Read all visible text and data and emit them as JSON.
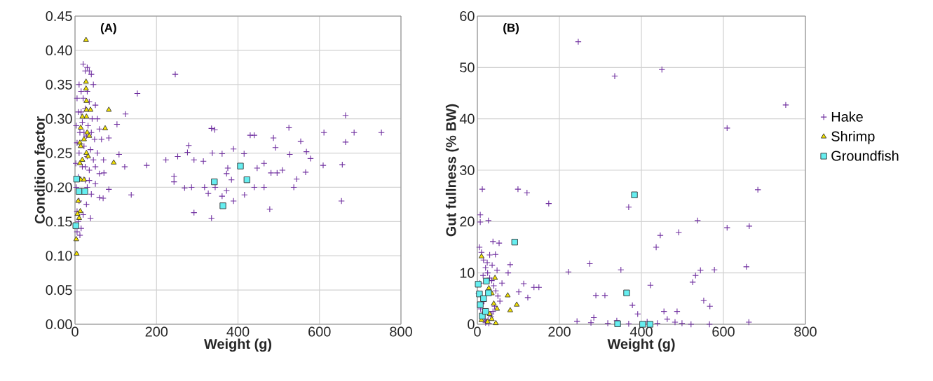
{
  "chart_data": [
    {
      "type": "scatter",
      "xlabel": "Weight (g)",
      "ylabel": "Condition factor",
      "annotations": [
        "(A)"
      ],
      "grid": true,
      "legend": false,
      "xlim": [
        0,
        800
      ],
      "xticks": [
        0,
        200,
        400,
        600,
        800
      ],
      "ylim": [
        0,
        0.45
      ],
      "yticks": [
        {
          "value": 0,
          "label": "0.00"
        },
        {
          "value": 0.05,
          "label": "0.05"
        },
        {
          "value": 0.1,
          "label": "0.10"
        },
        {
          "value": 0.15,
          "label": "0.15"
        },
        {
          "value": 0.2,
          "label": "0.20"
        },
        {
          "value": 0.25,
          "label": "0.25"
        },
        {
          "value": 0.3,
          "label": "0.30"
        },
        {
          "value": 0.35,
          "label": "0.35"
        },
        {
          "value": 0.4,
          "label": "0.40"
        },
        {
          "value": 0.45,
          "label": "0.45"
        }
      ],
      "series": [
        {
          "color": "#7030a0",
          "marker": "cross",
          "x": [
            246,
            153,
            124,
            103,
            83,
            108,
            122,
            176,
            71,
            83,
            138,
            69,
            335,
            343,
            279,
            276,
            223,
            252,
            292,
            315,
            337,
            361,
            389,
            415,
            430,
            440,
            487,
            492,
            243,
            243,
            269,
            286,
            318,
            327,
            344,
            361,
            372,
            384,
            389,
            292,
            335,
            416,
            440,
            464,
            478,
            447,
            464,
            481,
            496,
            375,
            372,
            664,
            525,
            611,
            685,
            752,
            554,
            664,
            527,
            568,
            578,
            609,
            656,
            509,
            566,
            544,
            537,
            654,
            20,
            25,
            30,
            35,
            10,
            40,
            15,
            30,
            45,
            5,
            20,
            35,
            50,
            8,
            25,
            42,
            55,
            3,
            18,
            32,
            60,
            12,
            28,
            48,
            65,
            5,
            22,
            38,
            55,
            10,
            30,
            45,
            70,
            2,
            18,
            35,
            60,
            8,
            25,
            50,
            3,
            15,
            40,
            60,
            10,
            28,
            5,
            20,
            38,
            8,
            15,
            5,
            12,
            30,
            22,
            15,
            40,
            25,
            50,
            35
          ],
          "values": [
            0.365,
            0.337,
            0.307,
            0.292,
            0.272,
            0.248,
            0.23,
            0.232,
            0.221,
            0.197,
            0.189,
            0.184,
            0.286,
            0.284,
            0.261,
            0.251,
            0.24,
            0.245,
            0.24,
            0.238,
            0.25,
            0.249,
            0.256,
            0.249,
            0.276,
            0.276,
            0.272,
            0.258,
            0.216,
            0.208,
            0.199,
            0.2,
            0.2,
            0.191,
            0.2,
            0.187,
            0.195,
            0.211,
            0.18,
            0.163,
            0.155,
            0.189,
            0.2,
            0.2,
            0.168,
            0.228,
            0.235,
            0.221,
            0.221,
            0.228,
            0.22,
            0.305,
            0.287,
            0.28,
            0.28,
            0.28,
            0.267,
            0.266,
            0.248,
            0.252,
            0.242,
            0.232,
            0.233,
            0.225,
            0.222,
            0.212,
            0.2,
            0.18,
            0.38,
            0.37,
            0.375,
            0.37,
            0.35,
            0.365,
            0.34,
            0.34,
            0.35,
            0.33,
            0.33,
            0.325,
            0.32,
            0.31,
            0.315,
            0.3,
            0.3,
            0.29,
            0.295,
            0.29,
            0.285,
            0.28,
            0.275,
            0.27,
            0.27,
            0.265,
            0.26,
            0.255,
            0.25,
            0.25,
            0.245,
            0.24,
            0.24,
            0.235,
            0.23,
            0.225,
            0.22,
            0.215,
            0.21,
            0.205,
            0.2,
            0.195,
            0.19,
            0.185,
            0.18,
            0.175,
            0.165,
            0.16,
            0.155,
            0.15,
            0.14,
            0.135,
            0.13,
            0.2,
            0.28,
            0.31,
            0.28,
            0.23,
            0.23,
            0.21
          ]
        },
        {
          "color": "#f5e400",
          "marker": "triangle",
          "x": [
            27,
            27,
            27,
            28,
            28,
            38,
            83,
            28,
            18,
            74,
            14,
            30,
            22,
            12,
            35,
            95,
            14,
            28,
            18,
            32,
            12,
            14,
            22,
            8,
            13,
            6,
            10,
            3,
            4
          ],
          "values": [
            0.415,
            0.354,
            0.344,
            0.326,
            0.313,
            0.313,
            0.313,
            0.303,
            0.303,
            0.286,
            0.287,
            0.28,
            0.27,
            0.265,
            0.275,
            0.236,
            0.26,
            0.25,
            0.24,
            0.245,
            0.235,
            0.211,
            0.211,
            0.18,
            0.165,
            0.161,
            0.155,
            0.124,
            0.103
          ]
        },
        {
          "color": "#66eef0",
          "marker": "square",
          "x": [
            4,
            10,
            24,
            2,
            342,
            406,
            422,
            363
          ],
          "values": [
            0.212,
            0.194,
            0.194,
            0.144,
            0.208,
            0.231,
            0.211,
            0.173
          ]
        }
      ]
    },
    {
      "type": "scatter",
      "xlabel": "Weight (g)",
      "ylabel": "Gut fullness (% BW)",
      "annotations": [
        "(B)"
      ],
      "grid": true,
      "legend": "right",
      "xlim": [
        0,
        800
      ],
      "xticks": [
        0,
        200,
        400,
        600,
        800
      ],
      "ylim": [
        0,
        60
      ],
      "yticks": [
        0,
        10,
        20,
        30,
        40,
        50,
        60
      ],
      "series": [
        {
          "name": "Hake",
          "color": "#7030a0",
          "marker": "cross",
          "x": [
            246,
            335,
            450,
            12,
            99,
            121,
            174,
            7,
            7,
            27,
            369,
            446,
            491,
            436,
            274,
            222,
            350,
            289,
            311,
            378,
            422,
            455,
            487,
            243,
            277,
            284,
            318,
            340,
            369,
            391,
            414,
            439,
            463,
            482,
            499,
            752,
            609,
            684,
            537,
            609,
            663,
            578,
            544,
            532,
            525,
            656,
            552,
            567,
            521,
            566,
            662,
            38,
            53,
            44,
            80,
            113,
            138,
            150,
            101,
            123,
            75,
            5,
            10,
            15,
            20,
            25,
            30,
            35,
            40,
            45,
            50,
            55,
            8,
            12,
            18,
            22,
            28,
            33,
            38,
            42,
            3,
            6,
            14,
            24,
            30,
            36,
            48,
            60,
            10,
            20,
            26,
            34,
            16
          ],
          "values": [
            55.0,
            48.3,
            49.6,
            26.3,
            26.3,
            25.6,
            23.5,
            21.3,
            19.9,
            20.2,
            22.8,
            17.3,
            17.9,
            15.0,
            11.8,
            10.2,
            10.6,
            5.6,
            5.6,
            3.7,
            7.6,
            2.5,
            2.5,
            0.6,
            0.3,
            1.3,
            0.2,
            0.7,
            0.1,
            2.0,
            0.5,
            0.2,
            1.0,
            0.4,
            0.2,
            42.7,
            38.2,
            26.2,
            20.2,
            18.8,
            19.1,
            10.6,
            10.5,
            9.5,
            8.2,
            11.2,
            4.6,
            3.5,
            0.0,
            0.0,
            0.4,
            16.1,
            15.8,
            13.6,
            11.6,
            7.9,
            7.2,
            7.2,
            6.3,
            5.2,
            10.0,
            15.0,
            14.0,
            12.5,
            11.0,
            10.0,
            9.0,
            8.5,
            7.5,
            6.5,
            5.5,
            4.5,
            3.0,
            2.0,
            1.0,
            0.5,
            0.2,
            1.5,
            2.5,
            3.5,
            6.0,
            8.0,
            9.5,
            12.0,
            13.5,
            11.5,
            10.5,
            8.0,
            4.0,
            0.3,
            0.8,
            2.0,
            4.5
          ]
        },
        {
          "name": "Shrimp",
          "color": "#f5e400",
          "marker": "triangle",
          "x": [
            10,
            43,
            74,
            80,
            96,
            35,
            25,
            30,
            40,
            35,
            48,
            28,
            10,
            45
          ],
          "values": [
            13.2,
            9.0,
            5.6,
            2.7,
            3.8,
            1.0,
            0.5,
            2.0,
            4.0,
            6.0,
            3.0,
            7.0,
            0.8,
            0.2
          ]
        },
        {
          "name": "Groundfish",
          "color": "#66eef0",
          "marker": "square",
          "x": [
            91,
            383,
            364,
            342,
            403,
            421,
            2,
            22,
            27,
            5,
            7,
            12,
            15,
            20
          ],
          "values": [
            16.0,
            25.2,
            6.1,
            0.1,
            0.0,
            0.0,
            7.8,
            8.4,
            6.1,
            5.9,
            3.8,
            1.6,
            5.0,
            2.5
          ]
        }
      ]
    }
  ]
}
